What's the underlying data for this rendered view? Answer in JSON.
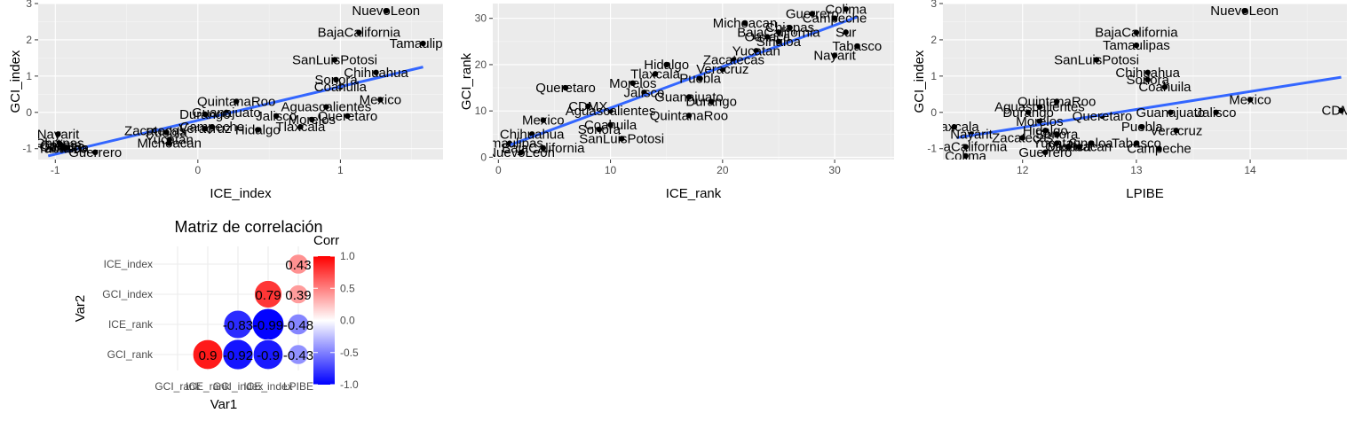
{
  "chart_data": [
    {
      "type": "scatter",
      "xlabel": "ICE_index",
      "ylabel": "GCI_index",
      "xlim": [
        -1.12,
        1.72
      ],
      "ylim": [
        -1.3,
        3.0
      ],
      "xticks": [
        "-1",
        "0",
        "1"
      ],
      "xtick_values": [
        -1,
        0,
        1
      ],
      "yticks": [
        "-1",
        "0",
        "1",
        "2",
        "3"
      ],
      "ytick_values": [
        -1,
        0,
        1,
        2,
        3
      ],
      "smooth": {
        "method": "lm",
        "x": [
          -1.05,
          1.58
        ],
        "y": [
          -1.2,
          1.25
        ]
      },
      "points": [
        {
          "label": "NuevoLeon",
          "x": 1.32,
          "y": 2.8
        },
        {
          "label": "BajaCalifornia",
          "x": 1.13,
          "y": 2.2
        },
        {
          "label": "Tamaulipas",
          "x": 1.58,
          "y": 1.9
        },
        {
          "label": "SanLuisPotosi",
          "x": 0.96,
          "y": 1.45
        },
        {
          "label": "Chihuahua",
          "x": 1.25,
          "y": 1.1
        },
        {
          "label": "Sonora",
          "x": 0.97,
          "y": 0.9
        },
        {
          "label": "Coahuila",
          "x": 1.0,
          "y": 0.7
        },
        {
          "label": "Mexico",
          "x": 1.28,
          "y": 0.35
        },
        {
          "label": "Aguascalientes",
          "x": 0.9,
          "y": 0.15
        },
        {
          "label": "QuintanaRoo",
          "x": 0.27,
          "y": 0.3
        },
        {
          "label": "Guanajuato",
          "x": 0.2,
          "y": 0.0
        },
        {
          "label": "Jalisco",
          "x": 0.55,
          "y": -0.1
        },
        {
          "label": "Queretaro",
          "x": 1.05,
          "y": -0.1
        },
        {
          "label": "Durango",
          "x": 0.05,
          "y": -0.05
        },
        {
          "label": "Morelos",
          "x": 0.8,
          "y": -0.2
        },
        {
          "label": "Campeche",
          "x": 0.1,
          "y": -0.4
        },
        {
          "label": "Tlaxcala",
          "x": 0.72,
          "y": -0.4
        },
        {
          "label": "Hidalgo",
          "x": 0.42,
          "y": -0.48
        },
        {
          "label": "Veracruz",
          "x": 0.05,
          "y": -0.45
        },
        {
          "label": "Zacatecas",
          "x": -0.3,
          "y": -0.5
        },
        {
          "label": "Puebla",
          "x": -0.22,
          "y": -0.55
        },
        {
          "label": "Yucatan",
          "x": -0.2,
          "y": -0.75
        },
        {
          "label": "Michoacan",
          "x": -0.2,
          "y": -0.85
        },
        {
          "label": "Nayarit",
          "x": -0.98,
          "y": -0.6
        },
        {
          "label": "Colima",
          "x": -0.96,
          "y": -0.9
        },
        {
          "label": "Oaxaca",
          "x": -0.95,
          "y": -0.95
        },
        {
          "label": "Chiapas",
          "x": -0.97,
          "y": -0.85
        },
        {
          "label": "Sinaloa",
          "x": -0.92,
          "y": -0.98
        },
        {
          "label": "Tabasco",
          "x": -0.95,
          "y": -1.0
        },
        {
          "label": "Guerrero",
          "x": -0.72,
          "y": -1.1
        }
      ]
    },
    {
      "type": "scatter",
      "xlabel": "ICE_rank",
      "ylabel": "GCI_rank",
      "xlim": [
        -0.5,
        35.3
      ],
      "ylim": [
        -0.5,
        33.2
      ],
      "xticks": [
        "0",
        "10",
        "20",
        "30"
      ],
      "xtick_values": [
        0,
        10,
        20,
        30
      ],
      "yticks": [
        "0",
        "10",
        "20",
        "30"
      ],
      "ytick_values": [
        0,
        10,
        20,
        30
      ],
      "smooth": {
        "method": "lm",
        "x": [
          1,
          32
        ],
        "y": [
          2.6,
          30.3
        ]
      },
      "points": [
        {
          "label": "Colima",
          "x": 31,
          "y": 32
        },
        {
          "label": "Guerrero",
          "x": 28,
          "y": 31
        },
        {
          "label": "Michoacan",
          "x": 22,
          "y": 29
        },
        {
          "label": "Campeche",
          "x": 30,
          "y": 30
        },
        {
          "label": "Chiapas",
          "x": 26,
          "y": 28
        },
        {
          "label": "BajaCalifornia",
          "x": 25,
          "y": 27
        },
        {
          "label": "Oaxaca",
          "x": 24,
          "y": 26
        },
        {
          "label": "Sur",
          "x": 31,
          "y": 27
        },
        {
          "label": "Sinaloa",
          "x": 25,
          "y": 25
        },
        {
          "label": "Yucatan",
          "x": 23,
          "y": 23
        },
        {
          "label": "Tabasco",
          "x": 32,
          "y": 24
        },
        {
          "label": "Nayarit",
          "x": 30,
          "y": 22
        },
        {
          "label": "Zacatecas",
          "x": 21,
          "y": 21
        },
        {
          "label": "Veracruz",
          "x": 20,
          "y": 19
        },
        {
          "label": "Hidalgo",
          "x": 15,
          "y": 20
        },
        {
          "label": "Tlaxcala",
          "x": 14,
          "y": 18
        },
        {
          "label": "Puebla",
          "x": 18,
          "y": 17
        },
        {
          "label": "Morelos",
          "x": 12,
          "y": 16
        },
        {
          "label": "Queretaro",
          "x": 6,
          "y": 15
        },
        {
          "label": "Jalisco",
          "x": 13,
          "y": 14
        },
        {
          "label": "Guanajuato",
          "x": 17,
          "y": 13
        },
        {
          "label": "Durango",
          "x": 19,
          "y": 12
        },
        {
          "label": "CDMX",
          "x": 8,
          "y": 11
        },
        {
          "label": "Aguascalientes",
          "x": 10,
          "y": 10
        },
        {
          "label": "QuintanaRoo",
          "x": 17,
          "y": 9
        },
        {
          "label": "Mexico",
          "x": 4,
          "y": 8
        },
        {
          "label": "Coahuila",
          "x": 10,
          "y": 7
        },
        {
          "label": "Sonora",
          "x": 9,
          "y": 6
        },
        {
          "label": "Chihuahua",
          "x": 3,
          "y": 5
        },
        {
          "label": "SanLuisPotosi",
          "x": 11,
          "y": 4
        },
        {
          "label": "Tamaulipas",
          "x": 1,
          "y": 3
        },
        {
          "label": "BajaCalifornia",
          "x": 4,
          "y": 2
        },
        {
          "label": "NuevoLeon",
          "x": 2,
          "y": 1
        }
      ]
    },
    {
      "type": "scatter",
      "xlabel": "LPIBE",
      "ylabel": "GCI_index",
      "xlim": [
        11.3,
        14.85
      ],
      "ylim": [
        -1.3,
        3.0
      ],
      "xticks": [
        "12",
        "13",
        "14"
      ],
      "xtick_values": [
        12,
        13,
        14
      ],
      "yticks": [
        "-1",
        "0",
        "1",
        "2",
        "3"
      ],
      "ytick_values": [
        -1,
        0,
        1,
        2,
        3
      ],
      "smooth": {
        "method": "lm",
        "x": [
          11.42,
          14.8
        ],
        "y": [
          -0.7,
          0.97
        ]
      },
      "points": [
        {
          "label": "NuevoLeon",
          "x": 13.95,
          "y": 2.8
        },
        {
          "label": "BajaCalifornia",
          "x": 13.0,
          "y": 2.2
        },
        {
          "label": "Tamaulipas",
          "x": 13.0,
          "y": 1.85
        },
        {
          "label": "SanLuisPotosi",
          "x": 12.65,
          "y": 1.45
        },
        {
          "label": "Chihuahua",
          "x": 13.1,
          "y": 1.1
        },
        {
          "label": "Sonora",
          "x": 13.1,
          "y": 0.9
        },
        {
          "label": "Coahuila",
          "x": 13.25,
          "y": 0.7
        },
        {
          "label": "Mexico",
          "x": 14.0,
          "y": 0.35
        },
        {
          "label": "CDMX",
          "x": 14.8,
          "y": 0.05
        },
        {
          "label": "Jalisco",
          "x": 13.7,
          "y": 0.0
        },
        {
          "label": "QuintanaRoo",
          "x": 12.3,
          "y": 0.3
        },
        {
          "label": "Aguascalientes",
          "x": 12.15,
          "y": 0.15
        },
        {
          "label": "Guanajuato",
          "x": 13.3,
          "y": 0.0
        },
        {
          "label": "Durango",
          "x": 12.05,
          "y": 0.0
        },
        {
          "label": "Queretaro",
          "x": 12.7,
          "y": -0.1
        },
        {
          "label": "Morelos",
          "x": 12.15,
          "y": -0.25
        },
        {
          "label": "Puebla",
          "x": 13.05,
          "y": -0.4
        },
        {
          "label": "Veracruz",
          "x": 13.35,
          "y": -0.5
        },
        {
          "label": "Hidalgo",
          "x": 12.2,
          "y": -0.5
        },
        {
          "label": "Tlaxcala",
          "x": 11.4,
          "y": -0.4
        },
        {
          "label": "Nayarit",
          "x": 11.55,
          "y": -0.6
        },
        {
          "label": "Zacatecas",
          "x": 12.0,
          "y": -0.7
        },
        {
          "label": "Sonora",
          "x": 12.3,
          "y": -0.6
        },
        {
          "label": "Sinaloa",
          "x": 12.6,
          "y": -0.85
        },
        {
          "label": "Tabasco",
          "x": 13.0,
          "y": -0.85
        },
        {
          "label": "Michoacan",
          "x": 12.5,
          "y": -0.95
        },
        {
          "label": "Campeche",
          "x": 13.2,
          "y": -1.0
        },
        {
          "label": "Yucatan",
          "x": 12.3,
          "y": -0.85
        },
        {
          "label": "BajaCalifornia",
          "x": 11.5,
          "y": -0.95
        },
        {
          "label": "Oaxaca",
          "x": 12.4,
          "y": -0.95
        },
        {
          "label": "Colima",
          "x": 11.5,
          "y": -1.2
        },
        {
          "label": "Guerrero",
          "x": 12.2,
          "y": -1.1
        }
      ]
    },
    {
      "type": "heatmap",
      "title": "Matriz de correlación",
      "xlabel": "Var1",
      "ylabel": "Var2",
      "var1": [
        "GCI_rank",
        "ICE_rank",
        "GCI_index",
        "ICE_index",
        "LPIBE"
      ],
      "var2": [
        "GCI_rank",
        "ICE_rank",
        "GCI_index",
        "ICE_index"
      ],
      "legend_title": "Corr",
      "legend_ticks": [
        "1.0",
        "0.5",
        "0.0",
        "-0.5",
        "-1.0"
      ],
      "legend_tick_values": [
        1.0,
        0.5,
        0.0,
        -0.5,
        -1.0
      ],
      "legend_placement": "right",
      "colors": {
        "low": "#0000ff",
        "mid": "#ffffff",
        "high": "#ff0000"
      },
      "cells": [
        {
          "var1": "LPIBE",
          "var2": "ICE_index",
          "value": 0.43,
          "label": "0.43"
        },
        {
          "var1": "ICE_index",
          "var2": "GCI_index",
          "value": 0.79,
          "label": "0.79"
        },
        {
          "var1": "LPIBE",
          "var2": "GCI_index",
          "value": 0.39,
          "label": "0.39"
        },
        {
          "var1": "GCI_index",
          "var2": "ICE_rank",
          "value": -0.83,
          "label": "-0.83"
        },
        {
          "var1": "ICE_index",
          "var2": "ICE_rank",
          "value": -0.99,
          "label": "-0.99"
        },
        {
          "var1": "LPIBE",
          "var2": "ICE_rank",
          "value": -0.48,
          "label": "-0.48"
        },
        {
          "var1": "ICE_rank",
          "var2": "GCI_rank",
          "value": 0.9,
          "label": "0.9"
        },
        {
          "var1": "GCI_index",
          "var2": "GCI_rank",
          "value": -0.92,
          "label": "-0.92"
        },
        {
          "var1": "ICE_index",
          "var2": "GCI_rank",
          "value": -0.9,
          "label": "-0.9"
        },
        {
          "var1": "LPIBE",
          "var2": "GCI_rank",
          "value": -0.43,
          "label": "-0.43"
        }
      ]
    }
  ]
}
